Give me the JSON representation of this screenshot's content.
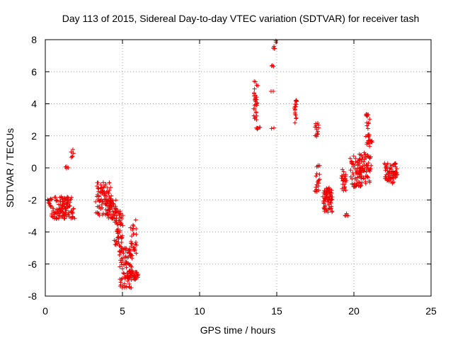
{
  "chart_data": {
    "type": "scatter",
    "title": "Day 113 of 2015, Sidereal Day-to-day VTEC variation (SDTVAR) for receiver tash",
    "xlabel": "GPS time / hours",
    "ylabel": "SDTVAR / TECUs",
    "xlim": [
      0,
      25
    ],
    "ylim": [
      -8,
      8
    ],
    "xticks": [
      0,
      5,
      10,
      15,
      20,
      25
    ],
    "yticks": [
      -8,
      -6,
      -4,
      -2,
      0,
      2,
      4,
      6,
      8
    ],
    "grid": true,
    "marker": "+",
    "marker_color": "#ee0000",
    "clusters": [
      {
        "x": [
          0.2,
          1.8
        ],
        "y": [
          -3.2,
          -1.8
        ],
        "n": 90
      },
      {
        "x": [
          0.9,
          1.5
        ],
        "y": [
          -3.0,
          -1.7
        ],
        "n": 30
      },
      {
        "x": [
          1.3,
          1.45
        ],
        "y": [
          -0.05,
          0.1
        ],
        "n": 4
      },
      {
        "x": [
          1.7,
          1.85
        ],
        "y": [
          0.6,
          1.2
        ],
        "n": 6
      },
      {
        "x": [
          1.7,
          1.9
        ],
        "y": [
          -3.2,
          -2.5
        ],
        "n": 6
      },
      {
        "x": [
          3.3,
          4.3
        ],
        "y": [
          -3.0,
          -0.9
        ],
        "n": 90
      },
      {
        "x": [
          4.0,
          4.6
        ],
        "y": [
          -3.2,
          -2.0
        ],
        "n": 40
      },
      {
        "x": [
          4.5,
          5.0
        ],
        "y": [
          -5.0,
          -2.5
        ],
        "n": 60
      },
      {
        "x": [
          4.8,
          5.6
        ],
        "y": [
          -7.5,
          -5.0
        ],
        "n": 80
      },
      {
        "x": [
          5.3,
          6.0
        ],
        "y": [
          -7.0,
          -6.4
        ],
        "n": 40
      },
      {
        "x": [
          5.5,
          5.9
        ],
        "y": [
          -5.6,
          -3.2
        ],
        "n": 30
      },
      {
        "x": [
          13.5,
          13.75
        ],
        "y": [
          2.8,
          5.4
        ],
        "n": 30
      },
      {
        "x": [
          13.7,
          13.9
        ],
        "y": [
          2.4,
          2.6
        ],
        "n": 6
      },
      {
        "x": [
          14.6,
          14.8
        ],
        "y": [
          4.7,
          4.8
        ],
        "n": 2
      },
      {
        "x": [
          14.7,
          14.8
        ],
        "y": [
          6.3,
          6.4
        ],
        "n": 3
      },
      {
        "x": [
          14.8,
          14.95
        ],
        "y": [
          7.4,
          7.95
        ],
        "n": 6
      },
      {
        "x": [
          14.7,
          14.8
        ],
        "y": [
          2.4,
          2.5
        ],
        "n": 2
      },
      {
        "x": [
          16.15,
          16.3
        ],
        "y": [
          2.7,
          4.3
        ],
        "n": 18
      },
      {
        "x": [
          17.5,
          17.7
        ],
        "y": [
          1.9,
          2.9
        ],
        "n": 14
      },
      {
        "x": [
          17.5,
          17.8
        ],
        "y": [
          -1.5,
          0.2
        ],
        "n": 20
      },
      {
        "x": [
          18.0,
          18.6
        ],
        "y": [
          -2.8,
          -1.2
        ],
        "n": 70
      },
      {
        "x": [
          19.2,
          19.5
        ],
        "y": [
          -1.5,
          -0.1
        ],
        "n": 25
      },
      {
        "x": [
          19.4,
          19.6
        ],
        "y": [
          -3.1,
          -2.8
        ],
        "n": 5
      },
      {
        "x": [
          19.8,
          20.5
        ],
        "y": [
          -1.2,
          0.8
        ],
        "n": 60
      },
      {
        "x": [
          20.3,
          21.1
        ],
        "y": [
          -1.0,
          1.0
        ],
        "n": 60
      },
      {
        "x": [
          20.8,
          21.0
        ],
        "y": [
          1.2,
          3.4
        ],
        "n": 22
      },
      {
        "x": [
          20.9,
          21.2
        ],
        "y": [
          1.5,
          2.1
        ],
        "n": 10
      },
      {
        "x": [
          22.0,
          22.8
        ],
        "y": [
          -1.0,
          0.3
        ],
        "n": 70
      }
    ]
  }
}
